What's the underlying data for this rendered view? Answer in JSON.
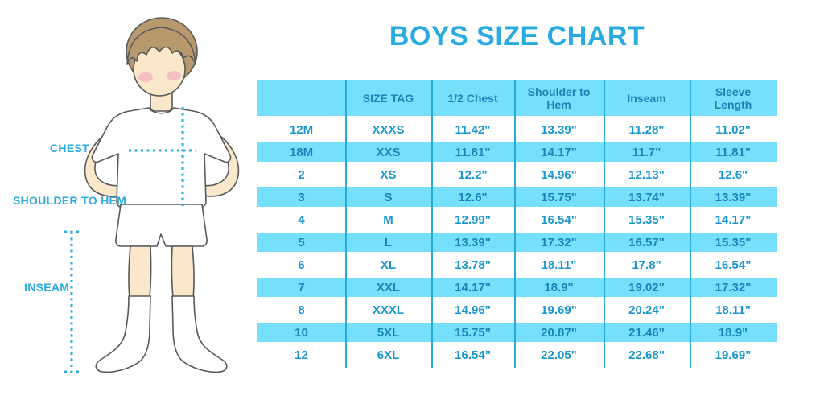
{
  "title": "BOYS SIZE CHART",
  "figure": {
    "labels": {
      "chest": "CHEST",
      "shoulder_to_hem": "SHOULDER TO HEM",
      "inseam": "INSEAM"
    }
  },
  "chart_data": {
    "type": "table",
    "title": "BOYS SIZE CHART",
    "columns": [
      "",
      "SIZE TAG",
      "1/2 Chest",
      "Shoulder to Hem",
      "Inseam",
      "Sleeve Length"
    ],
    "rows": [
      [
        "12M",
        "XXXS",
        "11.42\"",
        "13.39\"",
        "11.28\"",
        "11.02\""
      ],
      [
        "18M",
        "XXS",
        "11.81\"",
        "14.17\"",
        "11.7\"",
        "11.81\""
      ],
      [
        "2",
        "XS",
        "12.2\"",
        "14.96\"",
        "12.13\"",
        "12.6\""
      ],
      [
        "3",
        "S",
        "12.6\"",
        "15.75\"",
        "13.74\"",
        "13.39\""
      ],
      [
        "4",
        "M",
        "12.99\"",
        "16.54\"",
        "15.35\"",
        "14.17\""
      ],
      [
        "5",
        "L",
        "13.39\"",
        "17.32\"",
        "16.57\"",
        "15.35\""
      ],
      [
        "6",
        "XL",
        "13.78\"",
        "18.11\"",
        "17.8\"",
        "16.54\""
      ],
      [
        "7",
        "XXL",
        "14.17\"",
        "18.9\"",
        "19.02\"",
        "17.32\""
      ],
      [
        "8",
        "XXXL",
        "14.96\"",
        "19.69\"",
        "20.24\"",
        "18.11\""
      ],
      [
        "10",
        "5XL",
        "15.75\"",
        "20.87\"",
        "21.46\"",
        "18.9\""
      ],
      [
        "12",
        "6XL",
        "16.54\"",
        "22.05\"",
        "22.68\"",
        "19.69\""
      ]
    ],
    "layout": {
      "row_striping": "alternating white and light blue starting white",
      "legend": "none",
      "grid": "vertical column dividers only"
    }
  },
  "colors": {
    "accent_blue": "#29ABE2",
    "band_blue": "#76DFFB",
    "divider_blue": "#2AA9DD",
    "cell_text": "#1996CE",
    "header_text": "#1C84B6",
    "outline_gray": "#58595B",
    "skin": "#FBE8CA",
    "hair_brown": "#B8996E",
    "blush_pink": "#F4B3C2"
  }
}
